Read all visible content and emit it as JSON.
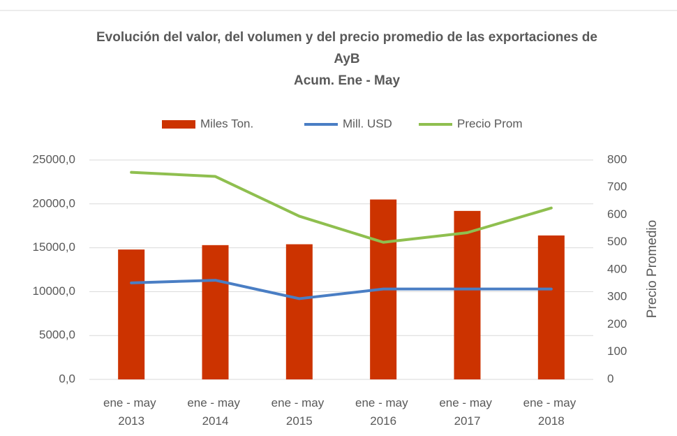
{
  "chart_data": {
    "type": "bar",
    "title": "Evolución del valor, del volumen y del precio promedio de las exportaciones de AyB",
    "subtitle": "Acum. Ene - May",
    "categories": [
      "ene - may 2013",
      "ene - may 2014",
      "ene - may 2015",
      "ene - may 2016",
      "ene - may 2017",
      "ene - may 2018"
    ],
    "series": [
      {
        "name": "Miles Ton.",
        "type": "bar",
        "color": "#cc3300",
        "values": [
          14800,
          15300,
          15400,
          20500,
          19200,
          16400
        ]
      },
      {
        "name": "Mill. USD",
        "type": "line",
        "color": "#4a7ec4",
        "values": [
          11000,
          11300,
          9200,
          10300,
          10300,
          10300
        ]
      },
      {
        "name": "Precio Prom",
        "type": "line",
        "color": "#8fbf4f",
        "axis": "y2",
        "values": [
          755,
          740,
          595,
          500,
          535,
          625
        ]
      }
    ],
    "ylim": [
      0,
      25000
    ],
    "yticks": [
      {
        "value": 0,
        "label": "0,0"
      },
      {
        "value": 5000,
        "label": "5000,0"
      },
      {
        "value": 10000,
        "label": "10000,0"
      },
      {
        "value": 15000,
        "label": "15000,0"
      },
      {
        "value": 20000,
        "label": "20000,0"
      },
      {
        "value": 25000,
        "label": "25000,0"
      }
    ],
    "y2lim": [
      0,
      800
    ],
    "y2ticks": [
      0,
      100,
      200,
      300,
      400,
      500,
      600,
      700,
      800
    ],
    "y2label": "Precio Promedio",
    "grid": true,
    "legend": "top"
  }
}
